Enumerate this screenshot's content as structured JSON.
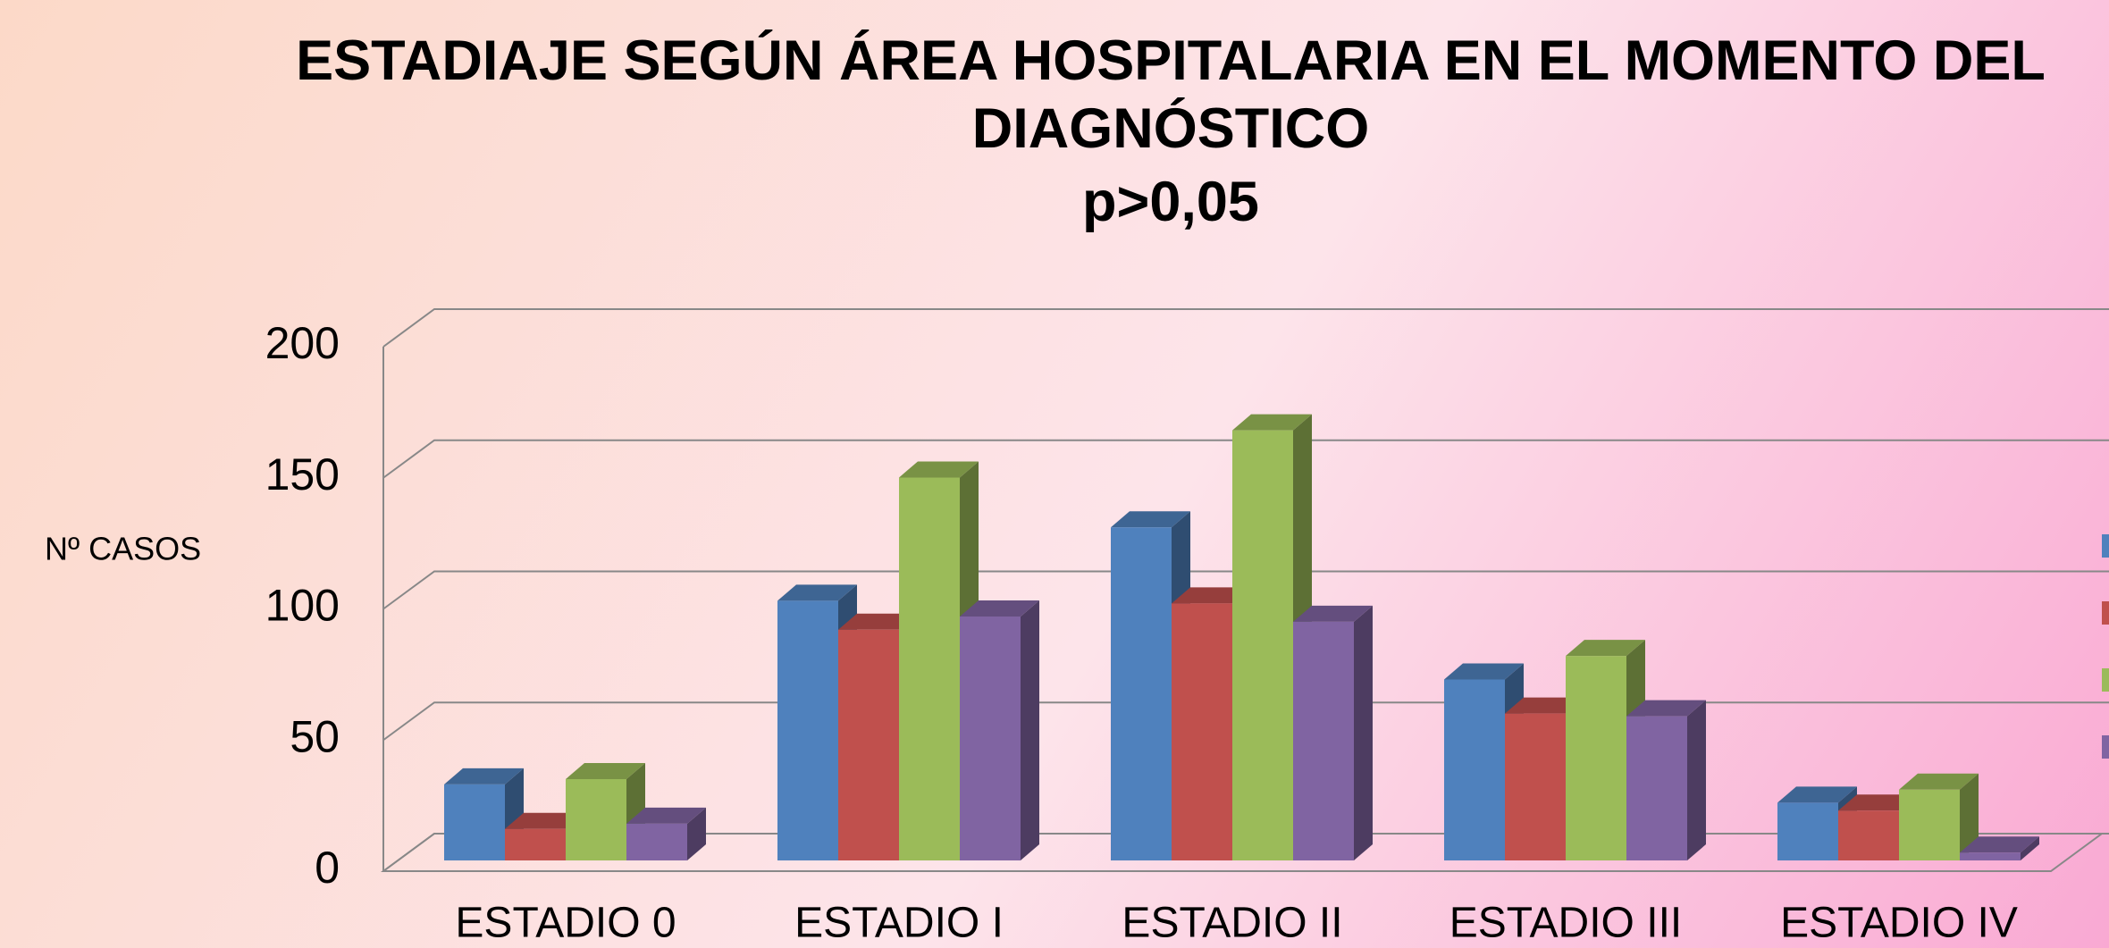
{
  "chart_data": {
    "type": "bar3d",
    "title": "ESTADIAJE SEGÚN ÁREA HOSPITALARIA EN EL MOMENTO DEL DIAGNÓSTICO",
    "subtitle": "p>0,05",
    "ylabel": "Nº  CASOS",
    "categories": [
      "ESTADIO 0",
      "ESTADIO I",
      "ESTADIO II",
      "ESTADIO III",
      "ESTADIO IV"
    ],
    "series": [
      {
        "color": "#4f81bd",
        "values": [
          29,
          99,
          127,
          69,
          22
        ]
      },
      {
        "color": "#c0504d",
        "values": [
          12,
          88,
          98,
          56,
          19
        ]
      },
      {
        "color": "#9bbb59",
        "values": [
          31,
          146,
          164,
          78,
          27
        ]
      },
      {
        "color": "#8064a2",
        "values": [
          14,
          93,
          91,
          55,
          3
        ]
      }
    ],
    "ylim": [
      0,
      200
    ],
    "yticks": [
      0,
      50,
      100,
      150,
      200
    ],
    "grid": true,
    "legend": "right"
  }
}
